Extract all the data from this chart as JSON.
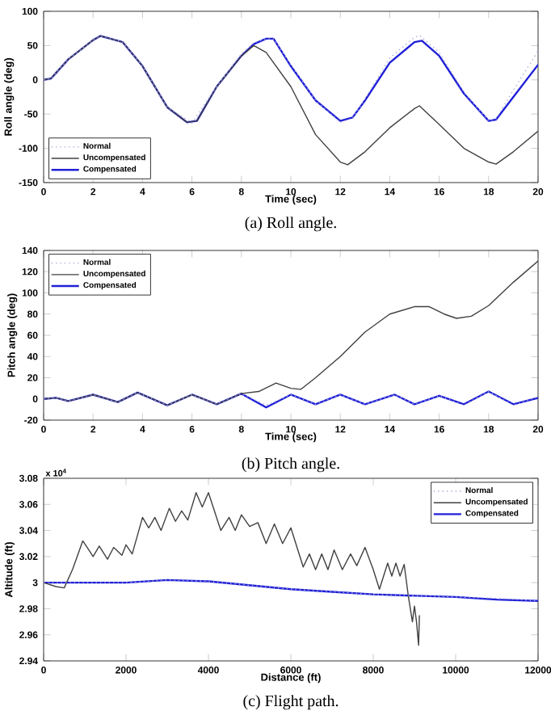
{
  "chart_data": [
    {
      "type": "line",
      "xlabel": "Time (sec)",
      "ylabel": "Roll angle (deg)",
      "annotations": [
        "(a) Roll angle."
      ],
      "xlim": [
        0,
        20
      ],
      "ylim": [
        -150,
        100
      ],
      "xticks": [
        0,
        2,
        4,
        6,
        8,
        10,
        12,
        14,
        16,
        18,
        20
      ],
      "yticks": [
        -150,
        -100,
        -50,
        0,
        50,
        100
      ],
      "legend": "bottom left",
      "grid": false,
      "marker": "none",
      "series": [
        {
          "name": "Normal",
          "color": "#a8a8d8",
          "line_style": "dotted",
          "x": [
            0,
            0.3,
            1,
            2,
            2.3,
            2.7,
            3.2,
            4,
            5,
            6,
            7,
            8,
            8.5,
            9,
            9.3,
            10,
            11,
            12,
            12.5,
            13,
            14,
            15,
            15.2,
            16,
            17,
            18,
            18.3,
            19,
            20
          ],
          "values": [
            0,
            2,
            30,
            58,
            64,
            60,
            55,
            20,
            -40,
            -63,
            -10,
            38,
            54,
            60,
            60,
            22,
            -30,
            -62,
            -56,
            -28,
            32,
            62,
            65,
            40,
            -18,
            -60,
            -57,
            -15,
            42
          ]
        },
        {
          "name": "Uncompensated",
          "color": "#404040",
          "line_style": "solid",
          "x": [
            0,
            0.3,
            1,
            2,
            2.3,
            2.7,
            3.2,
            4,
            5,
            5.8,
            6.2,
            7,
            8,
            8.5,
            9,
            10,
            11,
            12,
            12.3,
            13,
            14,
            15,
            15.2,
            16,
            17,
            18,
            18.3,
            19,
            20
          ],
          "values": [
            0,
            2,
            30,
            58,
            64,
            60,
            55,
            20,
            -40,
            -62,
            -60,
            -10,
            35,
            50,
            40,
            -10,
            -80,
            -120,
            -124,
            -105,
            -70,
            -42,
            -38,
            -65,
            -100,
            -120,
            -123,
            -105,
            -75
          ]
        },
        {
          "name": "Compensated",
          "color": "#2020d8",
          "line_style": "solid",
          "x": [
            0,
            0.3,
            1,
            2,
            2.3,
            2.7,
            3.2,
            4,
            5,
            5.8,
            6.2,
            7,
            8,
            8.5,
            9,
            9.3,
            10,
            11,
            12,
            12.5,
            13,
            14,
            15,
            15.3,
            16,
            17,
            18,
            18.3,
            19,
            20
          ],
          "values": [
            0,
            2,
            30,
            58,
            64,
            60,
            55,
            20,
            -40,
            -62,
            -60,
            -10,
            35,
            52,
            60,
            60,
            20,
            -30,
            -60,
            -55,
            -30,
            25,
            55,
            57,
            35,
            -20,
            -60,
            -58,
            -25,
            22
          ]
        }
      ]
    },
    {
      "type": "line",
      "xlabel": "Time (sec)",
      "ylabel": "Pitch angle (deg)",
      "annotations": [
        "(b) Pitch angle."
      ],
      "xlim": [
        0,
        20
      ],
      "ylim": [
        -20,
        140
      ],
      "xticks": [
        0,
        2,
        4,
        6,
        8,
        10,
        12,
        14,
        16,
        18,
        20
      ],
      "yticks": [
        -20,
        0,
        20,
        40,
        60,
        80,
        100,
        120,
        140
      ],
      "legend": "top left",
      "grid": false,
      "marker": "none",
      "series": [
        {
          "name": "Normal",
          "color": "#a8a8d8",
          "line_style": "dotted",
          "x": [
            0,
            0.5,
            1,
            2,
            3,
            3.8,
            5,
            6,
            7,
            8,
            9,
            10,
            11,
            12,
            13,
            14.2,
            15,
            16,
            17,
            18,
            19,
            20
          ],
          "values": [
            0,
            1,
            -2,
            4,
            -3,
            6,
            -6,
            4,
            -5,
            5,
            -6,
            4,
            -5,
            4,
            -5,
            4,
            -5,
            3,
            -6,
            7,
            -6,
            2
          ]
        },
        {
          "name": "Uncompensated",
          "color": "#404040",
          "line_style": "solid",
          "x": [
            0,
            0.5,
            1,
            2,
            3,
            3.8,
            5,
            6,
            7,
            8,
            8.7,
            9.4,
            10,
            10.4,
            11,
            12,
            13,
            14,
            15,
            15.6,
            16.2,
            16.7,
            17.3,
            18,
            19,
            20
          ],
          "values": [
            0,
            1,
            -2,
            4,
            -3,
            6,
            -6,
            4,
            -5,
            5,
            7,
            15,
            10,
            9,
            20,
            40,
            63,
            80,
            87,
            87,
            80,
            76,
            78,
            88,
            110,
            130
          ]
        },
        {
          "name": "Compensated",
          "color": "#2020d8",
          "line_style": "solid",
          "x": [
            0,
            0.5,
            1,
            2,
            3,
            3.8,
            5,
            6,
            7,
            8,
            9,
            10,
            11,
            12,
            13,
            14.2,
            15,
            16,
            17,
            18,
            19,
            20
          ],
          "values": [
            0,
            1,
            -2,
            4,
            -3,
            6,
            -6,
            4,
            -5,
            5,
            -8,
            4,
            -5,
            4,
            -5,
            4,
            -5,
            3,
            -5,
            7,
            -5,
            1
          ]
        }
      ]
    },
    {
      "type": "line",
      "xlabel": "Distance (ft)",
      "ylabel": "Altitude (ft)",
      "annotations": [
        "x 10$^{4}$",
        "(c) Flight path."
      ],
      "xlim": [
        0,
        12000
      ],
      "ylim": [
        2.94,
        3.08
      ],
      "xticks": [
        0,
        2000,
        4000,
        6000,
        8000,
        10000,
        12000
      ],
      "yticks": [
        2.94,
        2.96,
        2.98,
        {
          "value": 3,
          "label": "3"
        },
        3.02,
        3.04,
        3.06,
        3.08
      ],
      "legend": "top right",
      "grid": false,
      "marker": "none",
      "series": [
        {
          "name": "Normal",
          "color": "#a8a8d8",
          "line_style": "dotted",
          "x": [
            0,
            1000,
            2000,
            3000,
            4000,
            5000,
            6000,
            7000,
            8000,
            9000,
            10000,
            11000,
            12000
          ],
          "values": [
            3.0,
            3.0,
            3.0,
            3.002,
            3.001,
            2.998,
            2.995,
            2.993,
            2.991,
            2.99,
            2.989,
            2.988,
            2.986
          ]
        },
        {
          "name": "Uncompensated",
          "color": "#404040",
          "line_style": "solid",
          "x": [
            0,
            300,
            500,
            700,
            950,
            1100,
            1200,
            1350,
            1550,
            1700,
            1900,
            2000,
            2150,
            2400,
            2550,
            2700,
            2850,
            3050,
            3200,
            3350,
            3500,
            3700,
            3850,
            4000,
            4300,
            4500,
            4650,
            4800,
            5000,
            5200,
            5400,
            5600,
            5800,
            6000,
            6300,
            6450,
            6600,
            6750,
            6900,
            7050,
            7250,
            7450,
            7600,
            7800,
            8000,
            8150,
            8350,
            8450,
            8550,
            8650,
            8750,
            8850,
            8950,
            9000,
            9050,
            9100,
            9120
          ],
          "values": [
            3.0,
            2.997,
            2.996,
            3.01,
            3.032,
            3.025,
            3.02,
            3.028,
            3.018,
            3.027,
            3.021,
            3.029,
            3.022,
            3.05,
            3.042,
            3.05,
            3.04,
            3.057,
            3.047,
            3.055,
            3.048,
            3.069,
            3.058,
            3.069,
            3.04,
            3.05,
            3.04,
            3.052,
            3.043,
            3.046,
            3.03,
            3.045,
            3.03,
            3.042,
            3.012,
            3.022,
            3.01,
            3.022,
            3.01,
            3.025,
            3.01,
            3.022,
            3.013,
            3.027,
            3.01,
            2.995,
            3.015,
            3.005,
            3.015,
            3.005,
            3.014,
            2.99,
            2.97,
            2.982,
            2.97,
            2.952,
            2.975
          ]
        },
        {
          "name": "Compensated",
          "color": "#2020d8",
          "line_style": "solid",
          "x": [
            0,
            1000,
            2000,
            3000,
            4000,
            5000,
            6000,
            7000,
            8000,
            9000,
            10000,
            11000,
            12000
          ],
          "values": [
            3.0,
            3.0,
            3.0,
            3.002,
            3.001,
            2.998,
            2.995,
            2.993,
            2.991,
            2.99,
            2.989,
            2.987,
            2.986
          ]
        }
      ]
    }
  ]
}
